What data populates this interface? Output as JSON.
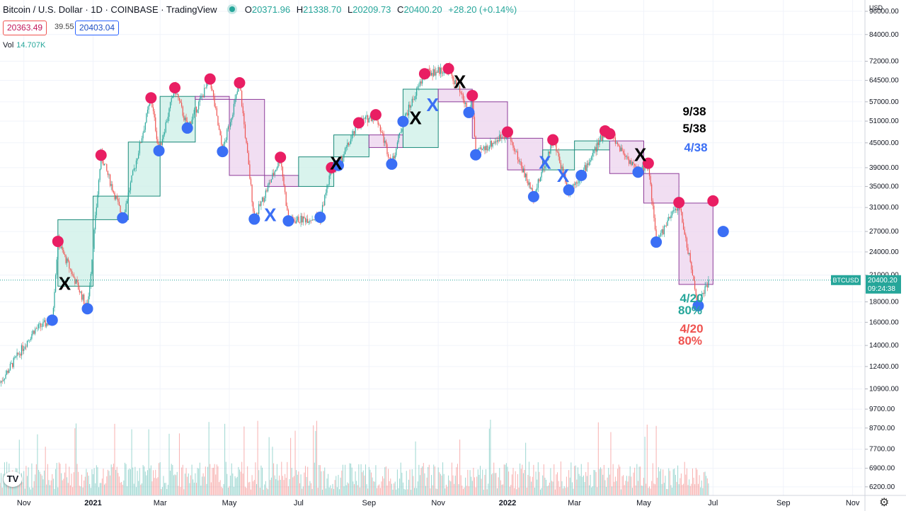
{
  "header": {
    "title": "Bitcoin / U.S. Dollar · 1D · COINBASE · TradingView",
    "o_label": "O",
    "o_value": "20371.96",
    "h_label": "H",
    "h_value": "21338.70",
    "l_label": "L",
    "l_value": "20209.73",
    "c_label": "C",
    "c_value": "20400.20",
    "change": "+28.20 (+0.14%)"
  },
  "quote": {
    "bid": "20363.49",
    "spread": "39.55",
    "ask": "20403.04"
  },
  "volume": {
    "label": "Vol",
    "value": "14.707K"
  },
  "axis": {
    "currency": "USD"
  },
  "last_price": {
    "symbol": "BTCUSD",
    "price": "20400.20",
    "countdown": "09:24:38"
  },
  "stats": {
    "top1": "9/38",
    "top2": "5/38",
    "top3": "4/38",
    "green_ratio": "4/20",
    "green_pct": "80%",
    "red_ratio": "4/20",
    "red_pct": "80%"
  },
  "colors": {
    "green": "#26a69a",
    "red": "#ef5350",
    "magenta": "#e91e63",
    "blue": "#3b6ff5",
    "box_green": "#ccefe7",
    "box_purple": "#ecd3ee"
  },
  "logo_text": "TV",
  "chart_data": {
    "type": "candlestick",
    "y_scale": "log",
    "ylim": [
      5900,
      100000
    ],
    "y_ticks": [
      96000,
      84000,
      72000,
      64500,
      57000,
      51000,
      45000,
      39000,
      35000,
      31000,
      27000,
      24000,
      21000,
      18000,
      16000,
      14000,
      12400,
      10900,
      9700,
      8700,
      7700,
      6900,
      6200
    ],
    "x_labels": [
      "Nov",
      "2021",
      "Mar",
      "May",
      "Jul",
      "Sep",
      "Nov",
      "2022",
      "Mar",
      "May",
      "Jul",
      "Sep",
      "Nov"
    ],
    "x_label_dates": [
      "2020-11-01",
      "2021-01-01",
      "2021-03-01",
      "2021-05-01",
      "2021-07-01",
      "2021-09-01",
      "2021-11-01",
      "2022-01-01",
      "2022-03-01",
      "2022-05-01",
      "2022-07-01",
      "2022-09-01",
      "2022-11-01"
    ],
    "x_range": [
      "2020-10-11",
      "2022-12-18"
    ],
    "monthly_boxes": [
      {
        "month": "2020-12",
        "open": 19700,
        "close": 28900,
        "dir": "up"
      },
      {
        "month": "2021-01",
        "open": 28900,
        "close": 33100,
        "dir": "up"
      },
      {
        "month": "2021-02",
        "open": 33100,
        "close": 45200,
        "dir": "up"
      },
      {
        "month": "2021-03",
        "open": 45200,
        "close": 58800,
        "dir": "up"
      },
      {
        "month": "2021-04",
        "open": 58800,
        "close": 57800,
        "dir": "down"
      },
      {
        "month": "2021-05",
        "open": 57800,
        "close": 37300,
        "dir": "down"
      },
      {
        "month": "2021-06",
        "open": 37300,
        "close": 35000,
        "dir": "down"
      },
      {
        "month": "2021-07",
        "open": 35000,
        "close": 41500,
        "dir": "up"
      },
      {
        "month": "2021-08",
        "open": 41500,
        "close": 47100,
        "dir": "up"
      },
      {
        "month": "2021-09",
        "open": 47100,
        "close": 43800,
        "dir": "down"
      },
      {
        "month": "2021-10",
        "open": 43800,
        "close": 61300,
        "dir": "up"
      },
      {
        "month": "2021-11",
        "open": 61300,
        "close": 57000,
        "dir": "down"
      },
      {
        "month": "2021-12",
        "open": 57000,
        "close": 46200,
        "dir": "down"
      },
      {
        "month": "2022-01",
        "open": 46200,
        "close": 38500,
        "dir": "down"
      },
      {
        "month": "2022-02",
        "open": 38500,
        "close": 43200,
        "dir": "up"
      },
      {
        "month": "2022-03",
        "open": 43200,
        "close": 45500,
        "dir": "up"
      },
      {
        "month": "2022-04",
        "open": 45500,
        "close": 37700,
        "dir": "down"
      },
      {
        "month": "2022-05",
        "open": 37700,
        "close": 31800,
        "dir": "down"
      },
      {
        "month": "2022-06",
        "open": 31800,
        "close": 19900,
        "dir": "down"
      }
    ],
    "highs": [
      {
        "date": "2020-12-01",
        "price": 25500
      },
      {
        "date": "2021-01-08",
        "price": 41900
      },
      {
        "date": "2021-02-21",
        "price": 58300
      },
      {
        "date": "2021-03-14",
        "price": 61800
      },
      {
        "date": "2021-04-14",
        "price": 65000
      },
      {
        "date": "2021-05-10",
        "price": 63600
      },
      {
        "date": "2021-06-15",
        "price": 41400
      },
      {
        "date": "2021-07-30",
        "price": 39000
      },
      {
        "date": "2021-08-23",
        "price": 50500
      },
      {
        "date": "2021-09-07",
        "price": 52900
      },
      {
        "date": "2021-10-20",
        "price": 67000
      },
      {
        "date": "2021-11-10",
        "price": 69000
      },
      {
        "date": "2021-12-01",
        "price": 59100
      },
      {
        "date": "2022-01-01",
        "price": 47900
      },
      {
        "date": "2022-02-10",
        "price": 45800
      },
      {
        "date": "2022-03-28",
        "price": 48200
      },
      {
        "date": "2022-04-01",
        "price": 47400
      },
      {
        "date": "2022-05-05",
        "price": 40000
      },
      {
        "date": "2022-06-01",
        "price": 31900
      },
      {
        "date": "2022-07-01",
        "price": 32200
      }
    ],
    "lows": [
      {
        "date": "2020-11-26",
        "price": 16200
      },
      {
        "date": "2020-12-27",
        "price": 17300
      },
      {
        "date": "2021-01-27",
        "price": 29200
      },
      {
        "date": "2021-02-28",
        "price": 43000
      },
      {
        "date": "2021-03-25",
        "price": 49000
      },
      {
        "date": "2021-04-25",
        "price": 42800
      },
      {
        "date": "2021-05-23",
        "price": 29000
      },
      {
        "date": "2021-06-22",
        "price": 28700
      },
      {
        "date": "2021-07-20",
        "price": 29300
      },
      {
        "date": "2021-08-05",
        "price": 39500
      },
      {
        "date": "2021-09-21",
        "price": 39800
      },
      {
        "date": "2021-10-01",
        "price": 50900
      },
      {
        "date": "2021-11-28",
        "price": 53600
      },
      {
        "date": "2021-12-04",
        "price": 42000
      },
      {
        "date": "2022-01-24",
        "price": 33000
      },
      {
        "date": "2022-02-24",
        "price": 34300
      },
      {
        "date": "2022-03-07",
        "price": 37300
      },
      {
        "date": "2022-04-26",
        "price": 38000
      },
      {
        "date": "2022-05-12",
        "price": 25400
      },
      {
        "date": "2022-06-18",
        "price": 17600
      },
      {
        "date": "2022-07-10",
        "price": 27000
      }
    ],
    "x_marks": [
      {
        "date": "2020-12-07",
        "price": 20000,
        "color": "black"
      },
      {
        "date": "2021-06-06",
        "price": 29700,
        "color": "blue"
      },
      {
        "date": "2021-08-03",
        "price": 40000,
        "color": "black"
      },
      {
        "date": "2021-10-12",
        "price": 52000,
        "color": "black"
      },
      {
        "date": "2021-10-27",
        "price": 56000,
        "color": "blue"
      },
      {
        "date": "2021-11-20",
        "price": 64000,
        "color": "black"
      },
      {
        "date": "2022-02-03",
        "price": 40200,
        "color": "blue"
      },
      {
        "date": "2022-02-19",
        "price": 37300,
        "color": "blue"
      },
      {
        "date": "2022-04-28",
        "price": 42000,
        "color": "black"
      }
    ],
    "last_price": 20400.2
  }
}
